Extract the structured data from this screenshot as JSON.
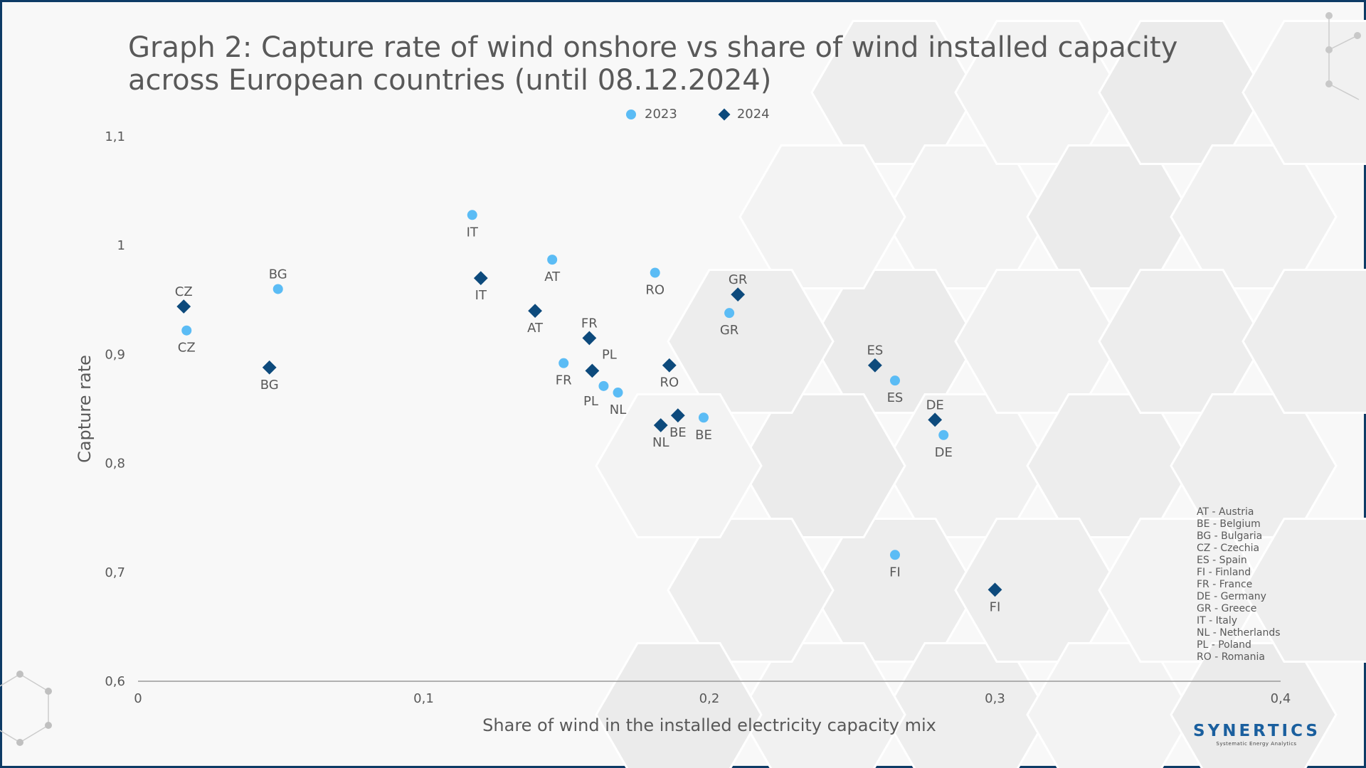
{
  "title": "Graph 2: Capture rate of wind onshore vs share of wind installed capacity across European countries (until 08.12.2024)",
  "colors": {
    "series_2023": "#5bbcf5",
    "series_2024": "#0d4a7c",
    "axis": "#595959",
    "border": "#0d3b66"
  },
  "chart_data": {
    "type": "scatter",
    "xlabel": "Share of wind in the installed electricity capacity mix",
    "ylabel": "Capture rate",
    "xlim": [
      0,
      0.4
    ],
    "ylim": [
      0.6,
      1.1
    ],
    "x_ticks": [
      {
        "v": 0,
        "label": "0"
      },
      {
        "v": 0.1,
        "label": "0,1"
      },
      {
        "v": 0.2,
        "label": "0,2"
      },
      {
        "v": 0.3,
        "label": "0,3"
      },
      {
        "v": 0.4,
        "label": "0,4"
      }
    ],
    "y_ticks": [
      {
        "v": 0.6,
        "label": "0,6"
      },
      {
        "v": 0.7,
        "label": "0,7"
      },
      {
        "v": 0.8,
        "label": "0,8"
      },
      {
        "v": 0.9,
        "label": "0,9"
      },
      {
        "v": 1.0,
        "label": "1"
      },
      {
        "v": 1.1,
        "label": "1,1"
      }
    ],
    "grid": false,
    "legend_position": "top-center",
    "series": [
      {
        "name": "2023",
        "marker": "circle",
        "points": [
          {
            "label": "CZ",
            "x": 0.017,
            "y": 0.922,
            "label_pos": "below"
          },
          {
            "label": "BG",
            "x": 0.049,
            "y": 0.96,
            "label_pos": "above"
          },
          {
            "label": "IT",
            "x": 0.117,
            "y": 1.028,
            "label_pos": "below"
          },
          {
            "label": "AT",
            "x": 0.145,
            "y": 0.987,
            "label_pos": "below"
          },
          {
            "label": "RO",
            "x": 0.181,
            "y": 0.975,
            "label_pos": "below"
          },
          {
            "label": "FR",
            "x": 0.149,
            "y": 0.892,
            "label_pos": "below"
          },
          {
            "label": "PL",
            "x": 0.163,
            "y": 0.871,
            "label_pos": "below-left"
          },
          {
            "label": "NL",
            "x": 0.168,
            "y": 0.865,
            "label_pos": "below"
          },
          {
            "label": "GR",
            "x": 0.207,
            "y": 0.938,
            "label_pos": "below"
          },
          {
            "label": "BE",
            "x": 0.198,
            "y": 0.842,
            "label_pos": "below"
          },
          {
            "label": "ES",
            "x": 0.265,
            "y": 0.876,
            "label_pos": "below"
          },
          {
            "label": "DE",
            "x": 0.282,
            "y": 0.826,
            "label_pos": "below"
          },
          {
            "label": "FI",
            "x": 0.265,
            "y": 0.716,
            "label_pos": "below"
          }
        ]
      },
      {
        "name": "2024",
        "marker": "diamond",
        "points": [
          {
            "label": "CZ",
            "x": 0.016,
            "y": 0.944,
            "label_pos": "above"
          },
          {
            "label": "BG",
            "x": 0.046,
            "y": 0.888,
            "label_pos": "below"
          },
          {
            "label": "IT",
            "x": 0.12,
            "y": 0.97,
            "label_pos": "below"
          },
          {
            "label": "AT",
            "x": 0.139,
            "y": 0.94,
            "label_pos": "below"
          },
          {
            "label": "FR",
            "x": 0.158,
            "y": 0.915,
            "label_pos": "above"
          },
          {
            "label": "PL",
            "x": 0.159,
            "y": 0.885,
            "label_pos": "above-right"
          },
          {
            "label": "RO",
            "x": 0.186,
            "y": 0.89,
            "label_pos": "below"
          },
          {
            "label": "GR",
            "x": 0.21,
            "y": 0.955,
            "label_pos": "above"
          },
          {
            "label": "NL",
            "x": 0.183,
            "y": 0.835,
            "label_pos": "below"
          },
          {
            "label": "BE",
            "x": 0.189,
            "y": 0.844,
            "label_pos": "below"
          },
          {
            "label": "ES",
            "x": 0.258,
            "y": 0.89,
            "label_pos": "above"
          },
          {
            "label": "DE",
            "x": 0.279,
            "y": 0.84,
            "label_pos": "above"
          },
          {
            "label": "FI",
            "x": 0.3,
            "y": 0.684,
            "label_pos": "below"
          }
        ]
      }
    ]
  },
  "country_key": [
    "AT - Austria",
    "BE - Belgium",
    "BG - Bulgaria",
    "CZ - Czechia",
    "ES - Spain",
    "FI - Finland",
    "FR - France",
    "DE -  Germany",
    "GR - Greece",
    "IT - Italy",
    "NL - Netherlands",
    "PL - Poland",
    "RO - Romania"
  ],
  "brand": {
    "name": "SYNERTICS",
    "tagline": "Systematic Energy Analytics"
  }
}
